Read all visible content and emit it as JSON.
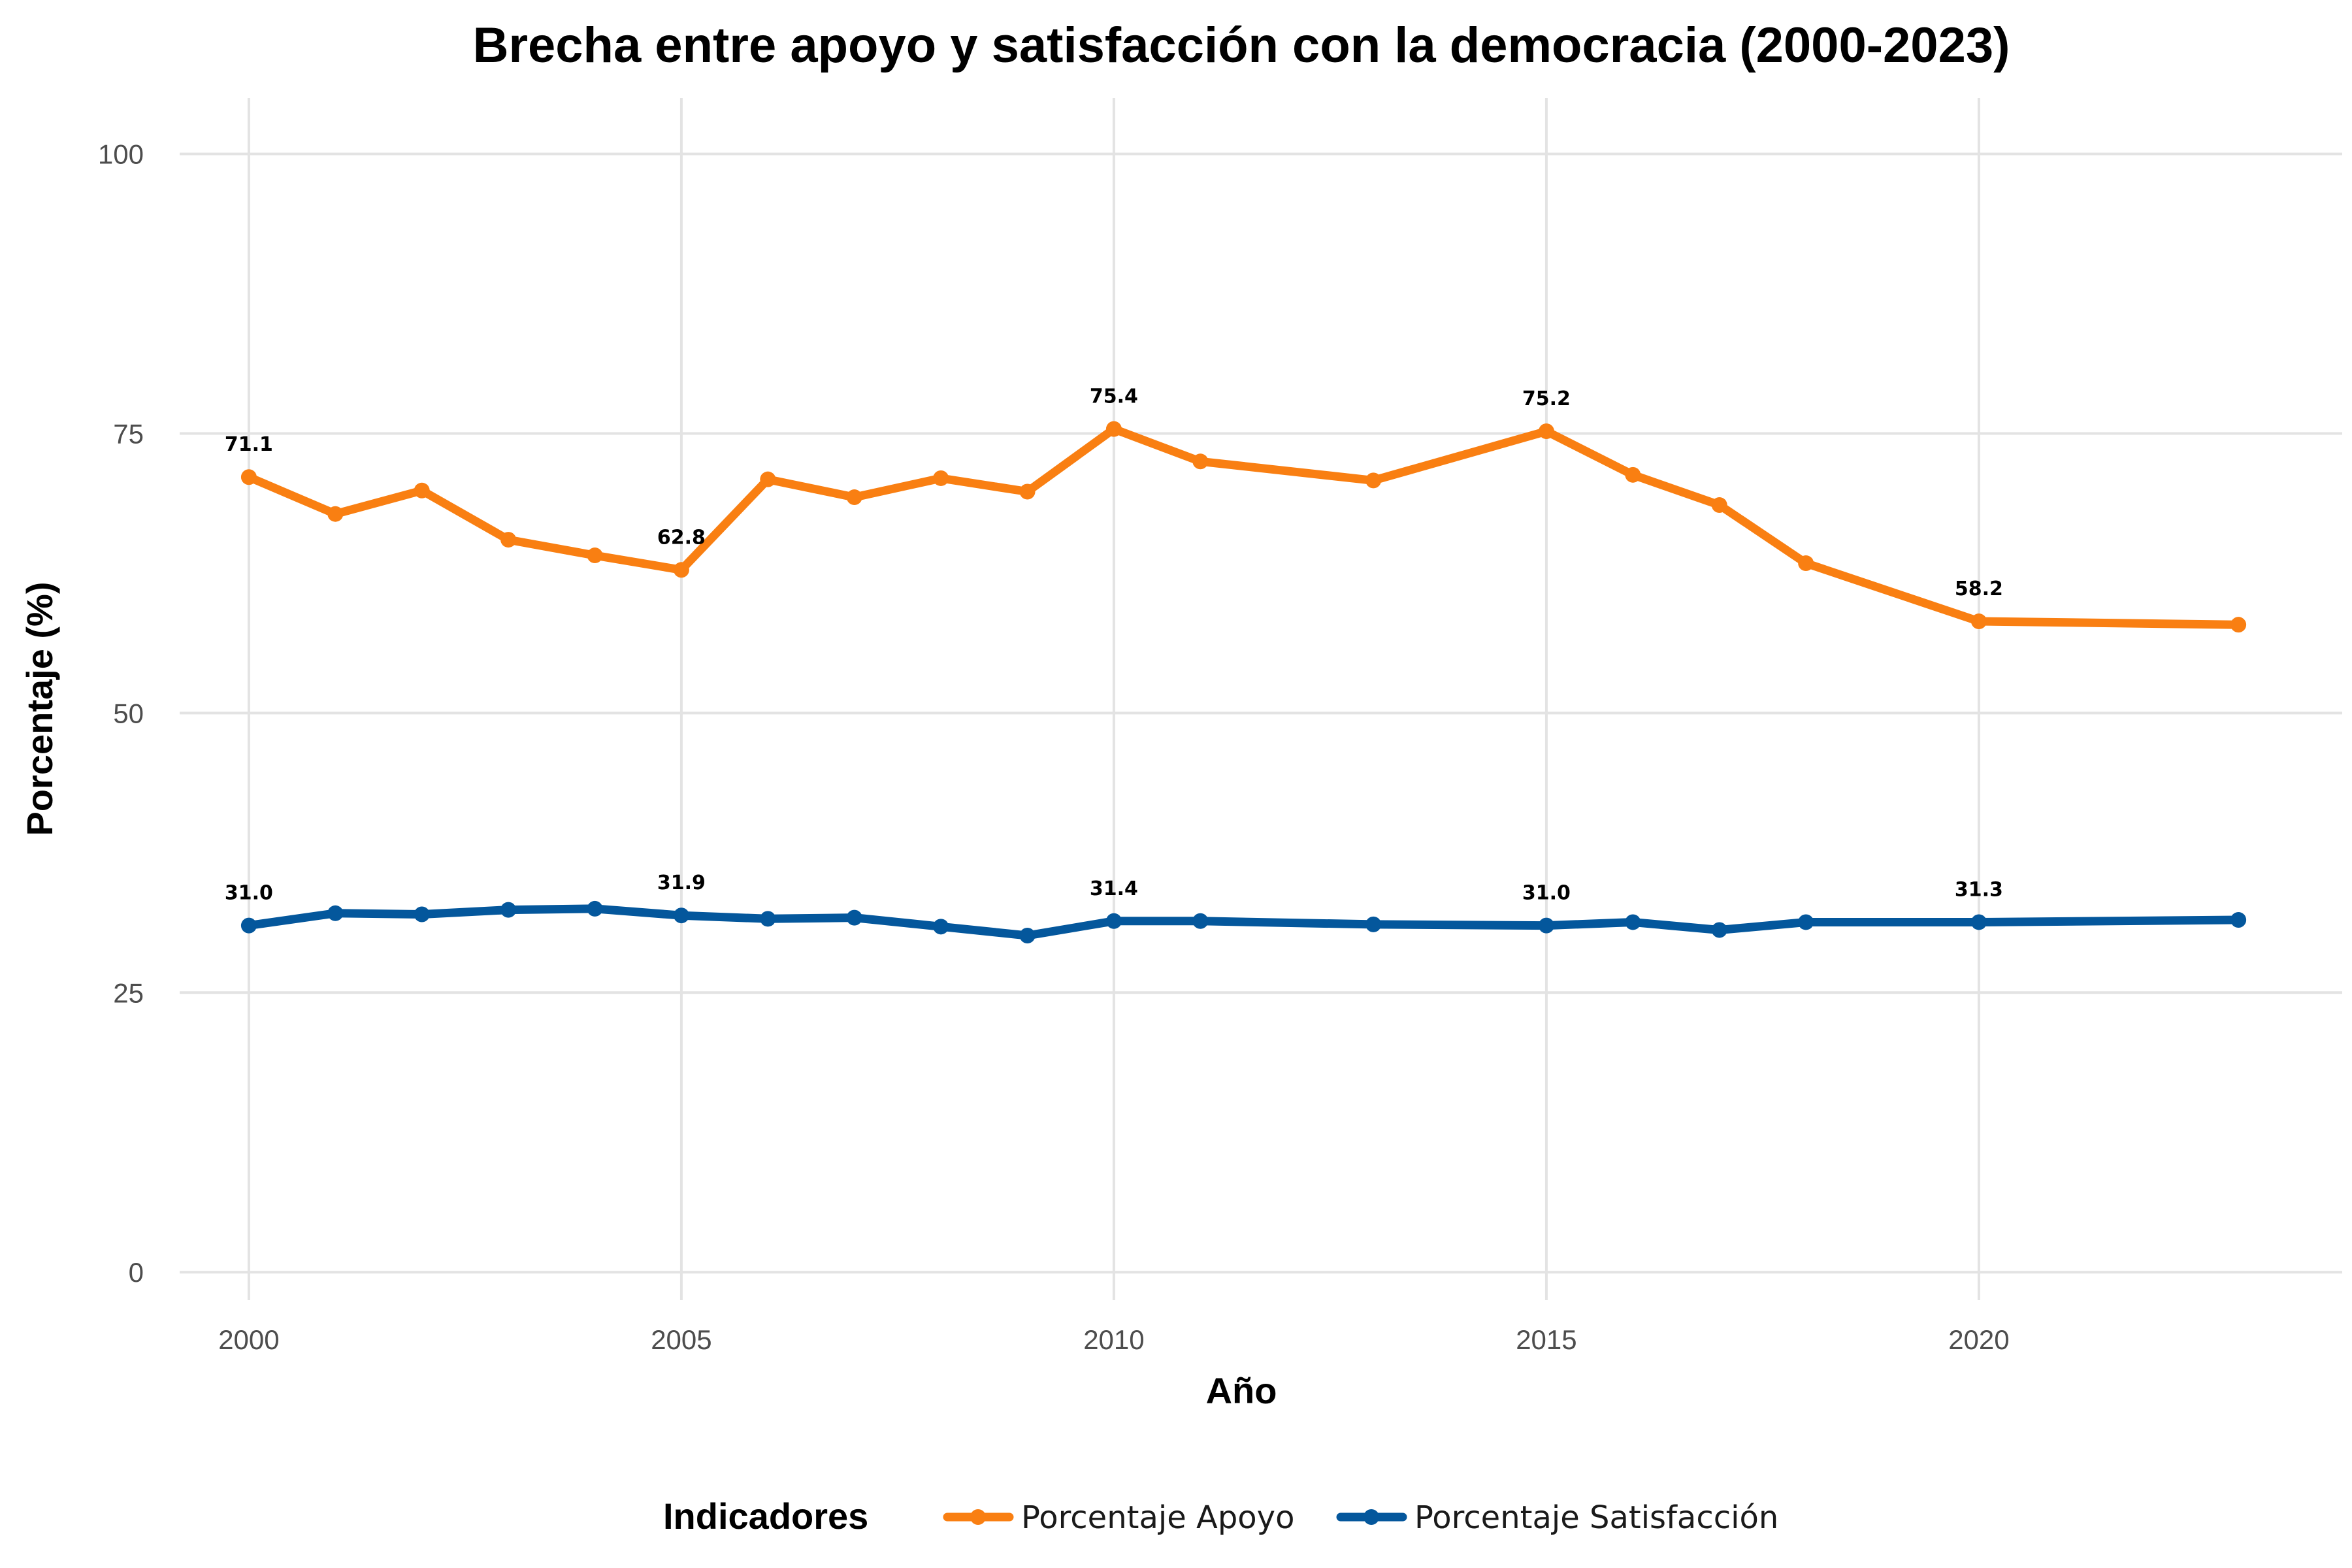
{
  "chart_data": {
    "type": "line",
    "title": "Brecha entre apoyo y satisfacción con la democracia (2000-2023)",
    "xlabel": "Año",
    "ylabel": "Porcentaje (%)",
    "xlim": [
      1999.2,
      2024.2
    ],
    "ylim": [
      -2.5,
      105
    ],
    "x_ticks": [
      2000,
      2005,
      2010,
      2015,
      2020
    ],
    "y_ticks": [
      0,
      25,
      50,
      75,
      100
    ],
    "grid": true,
    "legend": {
      "title": "Indicadores",
      "position": "bottom"
    },
    "x": [
      2000,
      2001,
      2002,
      2003,
      2004,
      2005,
      2006,
      2007,
      2008,
      2009,
      2010,
      2011,
      2013,
      2015,
      2016,
      2017,
      2018,
      2020,
      2023
    ],
    "series": [
      {
        "name": "Porcentaje Apoyo",
        "color": "#f97f12",
        "values": [
          71.1,
          67.8,
          69.9,
          65.5,
          64.1,
          62.8,
          70.9,
          69.3,
          71.0,
          69.8,
          75.4,
          72.5,
          70.8,
          75.2,
          71.3,
          68.6,
          63.4,
          58.2,
          57.9
        ],
        "labels": [
          {
            "x": 2000,
            "text": "71.1"
          },
          {
            "x": 2005,
            "text": "62.8"
          },
          {
            "x": 2010,
            "text": "75.4"
          },
          {
            "x": 2015,
            "text": "75.2"
          },
          {
            "x": 2020,
            "text": "58.2"
          }
        ]
      },
      {
        "name": "Porcentaje Satisfacción",
        "color": "#04579c",
        "values": [
          31.0,
          32.1,
          32.0,
          32.4,
          32.5,
          31.9,
          31.6,
          31.7,
          30.9,
          30.1,
          31.4,
          31.4,
          31.1,
          31.0,
          31.3,
          30.6,
          31.3,
          31.3,
          31.5
        ],
        "labels": [
          {
            "x": 2000,
            "text": "31.0"
          },
          {
            "x": 2005,
            "text": "31.9"
          },
          {
            "x": 2010,
            "text": "31.4"
          },
          {
            "x": 2015,
            "text": "31.0"
          },
          {
            "x": 2020,
            "text": "31.3"
          }
        ]
      }
    ]
  }
}
